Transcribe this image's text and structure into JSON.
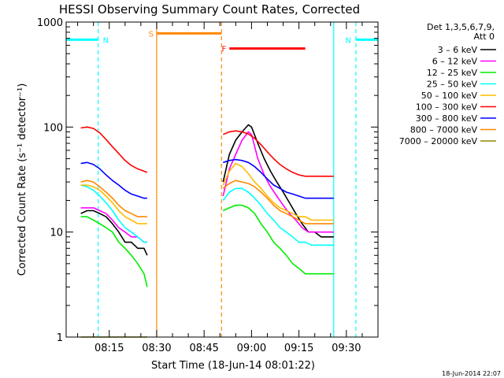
{
  "chart_data": {
    "type": "line",
    "title": "HESSI Observing Summary Count Rates, Corrected",
    "xlabel": "Start Time (18-Jun-14 08:01:22)",
    "ylabel": "Corrected Count Rate (s⁻¹ detector⁻¹)",
    "yscale": "log",
    "ylim": [
      1,
      1000
    ],
    "xlim": [
      "08:01:22",
      "09:40:00"
    ],
    "y_ticks": [
      "1",
      "10",
      "100",
      "1000"
    ],
    "x_ticks": [
      "08:15",
      "08:30",
      "08:45",
      "09:00",
      "09:15",
      "09:30"
    ],
    "legend": {
      "placement": "right",
      "header": [
        "Det 1,3,5,6,7,9,",
        "Att 0"
      ],
      "entries": [
        {
          "label": "3 – 6 keV",
          "color": "#000000"
        },
        {
          "label": "6 – 12 keV",
          "color": "#ff00ff"
        },
        {
          "label": "12 – 25 keV",
          "color": "#00ee00"
        },
        {
          "label": "25 – 50 keV",
          "color": "#00ffff"
        },
        {
          "label": "50 – 100 keV",
          "color": "#ffbb00"
        },
        {
          "label": "100 – 300 keV",
          "color": "#ff0000"
        },
        {
          "label": "300 – 800 keV",
          "color": "#0000ff"
        },
        {
          "label": "800 – 7000 keV",
          "color": "#ff8800"
        },
        {
          "label": "7000 – 20000 keV",
          "color": "#888800"
        }
      ]
    },
    "flag_bars": [
      {
        "label": "N",
        "color": "#00ffff",
        "start": "08:01:22",
        "end": "08:11:30",
        "level": 680
      },
      {
        "label": "N",
        "color": "#00ffff",
        "start": "09:33:00",
        "end": "09:40:00",
        "level": 680
      },
      {
        "label": "S",
        "color": "#ff8800",
        "start": "08:30:00",
        "end": "08:50:30",
        "level": 780
      },
      {
        "label": "F",
        "color": "#ff0000",
        "start": "08:53:00",
        "end": "09:17:00",
        "level": 560
      }
    ],
    "vertical_markers": [
      {
        "time": "08:11:30",
        "color": "#00ffff",
        "style": "dashed"
      },
      {
        "time": "08:30:00",
        "color": "#ff8800",
        "style": "solid"
      },
      {
        "time": "08:50:30",
        "color": "#ff8800",
        "style": "dashed"
      },
      {
        "time": "09:26:00",
        "color": "#00ffff",
        "style": "solid"
      },
      {
        "time": "09:33:00",
        "color": "#00ffff",
        "style": "dashed"
      }
    ],
    "series": [
      {
        "color": "#000000",
        "segments": [
          {
            "x": [
              "08:06",
              "08:08",
              "08:10",
              "08:12",
              "08:14",
              "08:16",
              "08:18",
              "08:20",
              "08:22",
              "08:24",
              "08:26",
              "08:27"
            ],
            "y": [
              15,
              16,
              16,
              15,
              14,
              12,
              10,
              8,
              8,
              7,
              7,
              6
            ]
          },
          {
            "x": [
              "08:51",
              "08:53",
              "08:55",
              "08:57",
              "08:59",
              "09:00",
              "09:02",
              "09:04",
              "09:06",
              "09:08",
              "09:10",
              "09:12",
              "09:14",
              "09:16",
              "09:18",
              "09:20",
              "09:22",
              "09:24",
              "09:26"
            ],
            "y": [
              30,
              55,
              75,
              90,
              105,
              100,
              70,
              50,
              38,
              30,
              24,
              19,
              15,
              12,
              10,
              10,
              9,
              9,
              9
            ]
          }
        ]
      },
      {
        "color": "#ff00ff",
        "segments": [
          {
            "x": [
              "08:06",
              "08:08",
              "08:10",
              "08:12",
              "08:14",
              "08:16",
              "08:18",
              "08:20",
              "08:22",
              "08:24",
              "08:26",
              "08:27"
            ],
            "y": [
              17,
              17,
              17,
              16,
              15,
              13,
              11,
              10,
              9,
              9,
              8,
              8
            ]
          },
          {
            "x": [
              "08:51",
              "08:53",
              "08:55",
              "08:57",
              "08:59",
              "09:00",
              "09:02",
              "09:04",
              "09:06",
              "09:08",
              "09:10",
              "09:12",
              "09:14",
              "09:16",
              "09:18",
              "09:20",
              "09:22",
              "09:24",
              "09:26"
            ],
            "y": [
              22,
              40,
              55,
              75,
              90,
              85,
              50,
              35,
              27,
              22,
              18,
              15,
              13,
              11,
              10,
              10,
              10,
              10,
              10
            ]
          }
        ]
      },
      {
        "color": "#00ee00",
        "segments": [
          {
            "x": [
              "08:06",
              "08:08",
              "08:10",
              "08:12",
              "08:14",
              "08:16",
              "08:18",
              "08:20",
              "08:22",
              "08:24",
              "08:26",
              "08:27"
            ],
            "y": [
              14,
              14,
              13,
              12,
              11,
              10,
              8,
              7,
              6,
              5,
              4,
              3
            ]
          },
          {
            "x": [
              "08:51",
              "08:53",
              "08:55",
              "08:57",
              "08:59",
              "09:01",
              "09:03",
              "09:05",
              "09:07",
              "09:09",
              "09:11",
              "09:13",
              "09:15",
              "09:17",
              "09:19",
              "09:21",
              "09:23",
              "09:25",
              "09:26"
            ],
            "y": [
              16,
              17,
              18,
              18,
              17,
              15,
              12,
              10,
              8,
              7,
              6,
              5,
              4.5,
              4,
              4,
              4,
              4,
              4,
              4
            ]
          }
        ]
      },
      {
        "color": "#00ffff",
        "segments": [
          {
            "x": [
              "08:06",
              "08:08",
              "08:10",
              "08:12",
              "08:14",
              "08:16",
              "08:18",
              "08:20",
              "08:22",
              "08:24",
              "08:26",
              "08:27"
            ],
            "y": [
              28,
              27,
              25,
              22,
              19,
              16,
              13,
              11,
              10,
              9,
              8,
              8
            ]
          },
          {
            "x": [
              "08:51",
              "08:53",
              "08:55",
              "08:57",
              "08:59",
              "09:01",
              "09:03",
              "09:05",
              "09:07",
              "09:09",
              "09:11",
              "09:13",
              "09:15",
              "09:17",
              "09:19",
              "09:21",
              "09:23",
              "09:25",
              "09:26"
            ],
            "y": [
              20,
              24,
              26,
              26,
              24,
              21,
              18,
              15,
              13,
              11,
              10,
              9,
              8,
              8,
              7.5,
              7.5,
              7.5,
              7.5,
              7.5
            ]
          }
        ]
      },
      {
        "color": "#ffbb00",
        "segments": [
          {
            "x": [
              "08:06",
              "08:08",
              "08:10",
              "08:12",
              "08:14",
              "08:16",
              "08:18",
              "08:20",
              "08:22",
              "08:24",
              "08:26",
              "08:27"
            ],
            "y": [
              28,
              28,
              27,
              25,
              22,
              19,
              16,
              14,
              13,
              12,
              12,
              12
            ]
          },
          {
            "x": [
              "08:51",
              "08:53",
              "08:55",
              "08:57",
              "08:59",
              "09:01",
              "09:03",
              "09:05",
              "09:07",
              "09:09",
              "09:11",
              "09:13",
              "09:15",
              "09:17",
              "09:19",
              "09:21",
              "09:23",
              "09:25",
              "09:26"
            ],
            "y": [
              28,
              38,
              45,
              42,
              36,
              30,
              26,
              22,
              19,
              17,
              16,
              15,
              14,
              14,
              13,
              13,
              13,
              13,
              13
            ]
          }
        ]
      },
      {
        "color": "#ff0000",
        "segments": [
          {
            "x": [
              "08:06",
              "08:08",
              "08:10",
              "08:12",
              "08:14",
              "08:16",
              "08:18",
              "08:20",
              "08:22",
              "08:24",
              "08:26",
              "08:27"
            ],
            "y": [
              98,
              100,
              97,
              88,
              76,
              65,
              56,
              48,
              43,
              40,
              38,
              37
            ]
          },
          {
            "x": [
              "08:51",
              "08:53",
              "08:55",
              "08:57",
              "08:59",
              "09:01",
              "09:03",
              "09:05",
              "09:07",
              "09:09",
              "09:11",
              "09:13",
              "09:15",
              "09:17",
              "09:19",
              "09:21",
              "09:23",
              "09:25",
              "09:26"
            ],
            "y": [
              85,
              90,
              92,
              90,
              86,
              78,
              68,
              58,
              50,
              44,
              40,
              37,
              35,
              34,
              34,
              34,
              34,
              34,
              34
            ]
          }
        ]
      },
      {
        "color": "#0000ff",
        "segments": [
          {
            "x": [
              "08:06",
              "08:08",
              "08:10",
              "08:12",
              "08:14",
              "08:16",
              "08:18",
              "08:20",
              "08:22",
              "08:24",
              "08:26",
              "08:27"
            ],
            "y": [
              45,
              46,
              44,
              40,
              35,
              31,
              28,
              25,
              23,
              22,
              21,
              21
            ]
          },
          {
            "x": [
              "08:51",
              "08:53",
              "08:55",
              "08:57",
              "08:59",
              "09:01",
              "09:03",
              "09:05",
              "09:07",
              "09:09",
              "09:11",
              "09:13",
              "09:15",
              "09:17",
              "09:19",
              "09:21",
              "09:23",
              "09:25",
              "09:26"
            ],
            "y": [
              46,
              48,
              49,
              48,
              46,
              42,
              37,
              32,
              28,
              26,
              24,
              23,
              22,
              21,
              21,
              21,
              21,
              21,
              21
            ]
          }
        ]
      },
      {
        "color": "#ff8800",
        "segments": [
          {
            "x": [
              "08:06",
              "08:08",
              "08:10",
              "08:12",
              "08:14",
              "08:16",
              "08:18",
              "08:20",
              "08:22",
              "08:24",
              "08:26",
              "08:27"
            ],
            "y": [
              30,
              31,
              30,
              27,
              24,
              21,
              18,
              16,
              15,
              14,
              14,
              14
            ]
          },
          {
            "x": [
              "08:51",
              "08:53",
              "08:55",
              "08:57",
              "08:59",
              "09:01",
              "09:03",
              "09:05",
              "09:07",
              "09:09",
              "09:11",
              "09:13",
              "09:15",
              "09:17",
              "09:19",
              "09:21",
              "09:23",
              "09:25",
              "09:26"
            ],
            "y": [
              26,
              29,
              31,
              30,
              29,
              27,
              24,
              21,
              18,
              16,
              15,
              14,
              13,
              12,
              12,
              12,
              12,
              12,
              12
            ]
          }
        ]
      },
      {
        "color": "#888800",
        "segments": [
          {
            "x": [
              "08:06",
              "08:10",
              "08:15",
              "08:20",
              "08:25",
              "08:27"
            ],
            "y": [
              1,
              1,
              1,
              1,
              1,
              1
            ]
          }
        ]
      }
    ]
  },
  "footer": {
    "timestamp": "18-Jun-2014 22:07"
  }
}
